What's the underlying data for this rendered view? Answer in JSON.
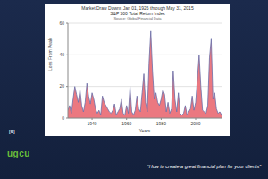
{
  "chart_data": {
    "type": "area",
    "title": "Market Draw Downs Jan 01, 1926 through May 31, 2015",
    "subtitle": "S&P 500 Total Return Index",
    "source": "Source: Global Financial Data",
    "xlabel": "Years",
    "ylabel": "Loss From Peak",
    "x": [
      1926,
      1927,
      1928,
      1929,
      1930,
      1931,
      1932,
      1933,
      1934,
      1935,
      1936,
      1937,
      1938,
      1939,
      1940,
      1941,
      1942,
      1943,
      1944,
      1945,
      1946,
      1947,
      1948,
      1949,
      1950,
      1951,
      1952,
      1953,
      1954,
      1955,
      1956,
      1957,
      1958,
      1959,
      1960,
      1961,
      1962,
      1963,
      1964,
      1965,
      1966,
      1967,
      1968,
      1969,
      1970,
      1971,
      1972,
      1973,
      1974,
      1975,
      1976,
      1977,
      1978,
      1979,
      1980,
      1981,
      1982,
      1983,
      1984,
      1985,
      1986,
      1987,
      1988,
      1989,
      1990,
      1991,
      1992,
      1993,
      1994,
      1995,
      1996,
      1997,
      1998,
      1999,
      2000,
      2001,
      2002,
      2003,
      2004,
      2005,
      2006,
      2007,
      2008,
      2009,
      2010,
      2011,
      2012,
      2013,
      2014,
      2015
    ],
    "values": [
      5,
      8,
      3,
      12,
      20,
      15,
      10,
      18,
      8,
      4,
      10,
      22,
      14,
      9,
      16,
      12,
      6,
      3,
      5,
      2,
      14,
      10,
      8,
      6,
      4,
      3,
      5,
      9,
      2,
      4,
      6,
      12,
      3,
      2,
      8,
      3,
      20,
      4,
      2,
      5,
      14,
      6,
      4,
      16,
      28,
      10,
      4,
      35,
      55,
      30,
      12,
      16,
      10,
      8,
      12,
      18,
      15,
      4,
      10,
      3,
      6,
      30,
      12,
      4,
      16,
      3,
      2,
      3,
      8,
      2,
      4,
      6,
      14,
      5,
      10,
      25,
      40,
      20,
      5,
      4,
      3,
      8,
      38,
      50,
      12,
      16,
      6,
      3,
      4,
      2
    ],
    "color": "#e8606a",
    "xlim": [
      1926,
      2015
    ],
    "xticks": [
      1940,
      1960,
      1980,
      2000
    ],
    "ylim": [
      0,
      60
    ],
    "yticks": [
      0,
      20,
      40,
      60
    ],
    "grid": true
  },
  "slide": {
    "reference": "[5]",
    "logo": "ugcu",
    "quote": "“How to create a great financial plan for your clients”"
  }
}
